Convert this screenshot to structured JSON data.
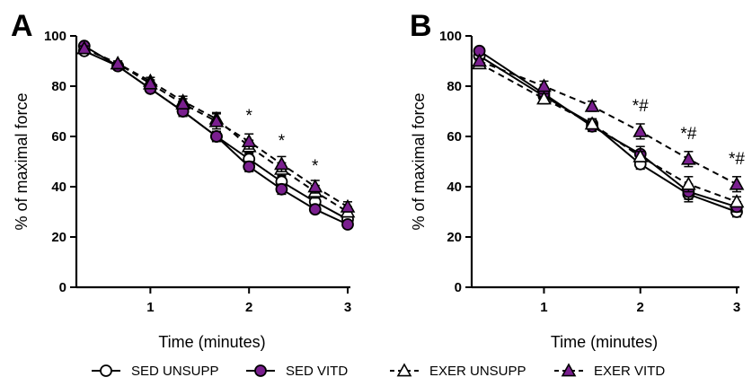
{
  "chart_data": [
    {
      "panel": "A",
      "type": "line",
      "xlabel": "Time (minutes)",
      "ylabel": "% of maximal force",
      "xlim": [
        0.25,
        3.0
      ],
      "ylim": [
        0,
        100
      ],
      "xticks": [
        1,
        2,
        3
      ],
      "yticks": [
        0,
        20,
        40,
        60,
        80,
        100
      ],
      "grid": false,
      "legend_position": "bottom",
      "series": [
        {
          "name": "SED UNSUPP",
          "marker": "circle",
          "fill": "#ffffff",
          "dashed": false,
          "x": [
            0.33,
            0.67,
            1.0,
            1.33,
            1.67,
            2.0,
            2.33,
            2.67,
            3.0
          ],
          "y": [
            94,
            88,
            79,
            70,
            60,
            51,
            42,
            34,
            27
          ],
          "err": [
            1,
            1,
            1.5,
            2,
            2,
            2,
            2,
            2,
            2
          ]
        },
        {
          "name": "SED VITD",
          "marker": "circle",
          "fill": "#7a1f8f",
          "dashed": false,
          "x": [
            0.33,
            0.67,
            1.0,
            1.33,
            1.67,
            2.0,
            2.33,
            2.67,
            3.0
          ],
          "y": [
            96,
            88,
            79,
            70,
            60,
            48,
            39,
            31,
            25
          ],
          "err": [
            1,
            1,
            1.5,
            2,
            2,
            2,
            2,
            1.5,
            1.5
          ]
        },
        {
          "name": "EXER UNSUPP",
          "marker": "triangle",
          "fill": "#ffffff",
          "dashed": true,
          "x": [
            0.33,
            0.67,
            1.0,
            1.33,
            1.67,
            2.0,
            2.33,
            2.67,
            3.0
          ],
          "y": [
            95,
            89,
            82,
            74,
            67,
            56,
            47,
            38,
            30
          ],
          "err": [
            1,
            1,
            1.5,
            2,
            2.5,
            2.5,
            2.5,
            2.5,
            2
          ]
        },
        {
          "name": "EXER VITD",
          "marker": "triangle",
          "fill": "#7a1f8f",
          "dashed": true,
          "x": [
            0.33,
            0.67,
            1.0,
            1.33,
            1.67,
            2.0,
            2.33,
            2.67,
            3.0
          ],
          "y": [
            95,
            89,
            81,
            73,
            66,
            58,
            49,
            40,
            32
          ],
          "err": [
            1,
            1,
            1.5,
            2,
            3,
            3,
            3,
            2.5,
            2
          ]
        }
      ],
      "annotations": [
        {
          "text": "*",
          "x": 2.0,
          "y": 66
        },
        {
          "text": "*",
          "x": 2.33,
          "y": 56
        },
        {
          "text": "*",
          "x": 2.67,
          "y": 46
        }
      ]
    },
    {
      "panel": "B",
      "type": "line",
      "xlabel": "Time (minutes)",
      "ylabel": "% of maximal force",
      "xlim": [
        0.25,
        3.0
      ],
      "ylim": [
        0,
        100
      ],
      "xticks": [
        1,
        2,
        3
      ],
      "yticks": [
        0,
        20,
        40,
        60,
        80,
        100
      ],
      "grid": false,
      "legend_position": "bottom",
      "series": [
        {
          "name": "SED UNSUPP",
          "marker": "circle",
          "fill": "#ffffff",
          "dashed": false,
          "x": [
            0.33,
            1.0,
            1.5,
            2.0,
            2.5,
            3.0
          ],
          "y": [
            92,
            76,
            65,
            49,
            37,
            30
          ],
          "err": [
            1,
            2,
            2,
            2,
            3,
            2
          ]
        },
        {
          "name": "SED VITD",
          "marker": "circle",
          "fill": "#7a1f8f",
          "dashed": false,
          "x": [
            0.33,
            1.0,
            1.5,
            2.0,
            2.5,
            3.0
          ],
          "y": [
            94,
            77,
            64,
            53,
            38,
            32
          ],
          "err": [
            1,
            2,
            2,
            3,
            3,
            2
          ]
        },
        {
          "name": "EXER UNSUPP",
          "marker": "triangle",
          "fill": "#ffffff",
          "dashed": true,
          "x": [
            0.33,
            1.0,
            1.5,
            2.0,
            2.5,
            3.0
          ],
          "y": [
            89,
            75,
            65,
            52,
            41,
            34
          ],
          "err": [
            1,
            2,
            2,
            2,
            3,
            2
          ]
        },
        {
          "name": "EXER VITD",
          "marker": "triangle",
          "fill": "#7a1f8f",
          "dashed": true,
          "x": [
            0.33,
            1.0,
            1.5,
            2.0,
            2.5,
            3.0
          ],
          "y": [
            90,
            80,
            72,
            62,
            51,
            41
          ],
          "err": [
            1,
            2,
            2,
            3,
            3,
            3
          ]
        }
      ],
      "annotations": [
        {
          "text": "*#",
          "x": 2.0,
          "y": 70
        },
        {
          "text": "*#",
          "x": 2.5,
          "y": 59
        },
        {
          "text": "*#",
          "x": 3.0,
          "y": 49
        }
      ]
    }
  ],
  "legend": {
    "items": [
      {
        "label": "SED UNSUPP",
        "marker": "circle",
        "fill": "#ffffff",
        "dashed": false
      },
      {
        "label": "SED VITD",
        "marker": "circle",
        "fill": "#7a1f8f",
        "dashed": false
      },
      {
        "label": "EXER UNSUPP",
        "marker": "triangle",
        "fill": "#ffffff",
        "dashed": true
      },
      {
        "label": "EXER VITD",
        "marker": "triangle",
        "fill": "#7a1f8f",
        "dashed": true
      }
    ]
  },
  "colors": {
    "purple": "#7a1f8f",
    "line": "#000000",
    "open_marker": "#ffffff"
  }
}
